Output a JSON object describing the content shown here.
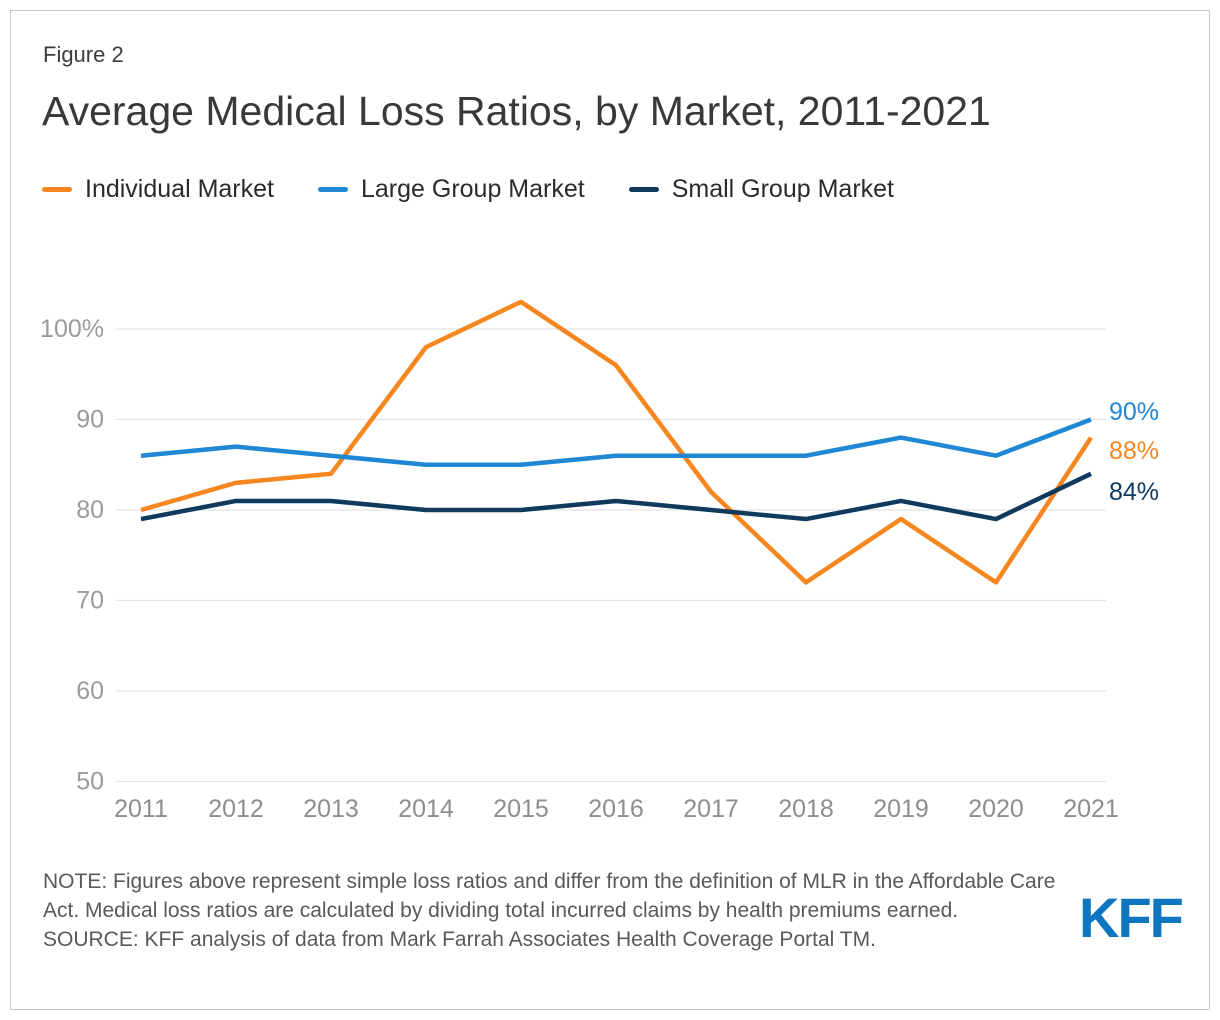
{
  "figure_label": "Figure 2",
  "title": "Average Medical Loss Ratios, by Market, 2011-2021",
  "legend": [
    {
      "label": "Individual Market",
      "color": "#F6861F"
    },
    {
      "label": "Large Group Market",
      "color": "#1F87D4"
    },
    {
      "label": "Small Group Market",
      "color": "#103A5D"
    }
  ],
  "chart_data": {
    "type": "line",
    "x": [
      2011,
      2012,
      2013,
      2014,
      2015,
      2016,
      2017,
      2018,
      2019,
      2020,
      2021
    ],
    "series": [
      {
        "name": "Individual Market",
        "color": "#F6861F",
        "values": [
          80,
          83,
          84,
          98,
          103,
          96,
          82,
          72,
          79,
          72,
          88
        ],
        "end_label": "88%"
      },
      {
        "name": "Large Group Market",
        "color": "#1F87D4",
        "values": [
          86,
          87,
          86,
          85,
          85,
          86,
          86,
          86,
          88,
          86,
          90
        ],
        "end_label": "90%"
      },
      {
        "name": "Small Group Market",
        "color": "#103A5D",
        "values": [
          79,
          81,
          81,
          80,
          80,
          81,
          80,
          79,
          81,
          79,
          84
        ],
        "end_label": "84%"
      }
    ],
    "y_ticks": [
      {
        "value": 100,
        "label": "100%"
      },
      {
        "value": 90,
        "label": "90"
      },
      {
        "value": 80,
        "label": "80"
      },
      {
        "value": 70,
        "label": "70"
      },
      {
        "value": 60,
        "label": "60"
      },
      {
        "value": 50,
        "label": "50"
      }
    ],
    "ylim": [
      50,
      105
    ],
    "grid": "horizontal",
    "legend_position": "top-left",
    "grid_color": "#e4e4e4"
  },
  "notes": {
    "note": "NOTE: Figures above represent simple loss ratios and differ from the definition of MLR in the Affordable Care Act. Medical loss ratios are calculated by dividing total incurred claims by health premiums earned.",
    "source": "SOURCE: KFF analysis of data from Mark Farrah Associates Health Coverage Portal TM."
  },
  "logo_text": "KFF"
}
